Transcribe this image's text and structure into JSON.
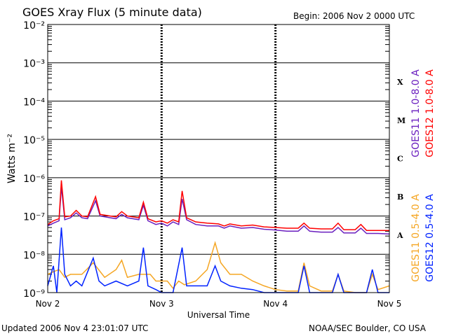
{
  "header": {
    "title": "GOES Xray Flux (5 minute data)",
    "begin": "Begin:  2006 Nov 2 0000 UTC"
  },
  "footer": {
    "updated": "Updated 2006 Nov  4 23:01:07 UTC",
    "credit": "NOAA/SEC Boulder, CO USA"
  },
  "colors": {
    "goes11_long": "#6a1fbf",
    "goes12_long": "#ff0000",
    "goes11_short": "#f5a623",
    "goes12_short": "#0022ff"
  },
  "chart_data": {
    "type": "line",
    "title": "GOES Xray Flux (5 minute data)",
    "xlabel": "Universal Time",
    "ylabel": "Watts m⁻²",
    "yscale": "log",
    "ylim": [
      1e-09,
      0.01
    ],
    "xlim": [
      0,
      3
    ],
    "x_unit": "days since 2006 Nov 2 0000 UTC",
    "x_ticks": [
      {
        "x": 0,
        "label": "Nov 2"
      },
      {
        "x": 1,
        "label": "Nov 3"
      },
      {
        "x": 2,
        "label": "Nov 4"
      },
      {
        "x": 3,
        "label": "Nov 5"
      }
    ],
    "y_ticks": [
      {
        "y": 0.01,
        "label": "10⁻²"
      },
      {
        "y": 0.001,
        "label": "10⁻³"
      },
      {
        "y": 0.0001,
        "label": "10⁻⁴"
      },
      {
        "y": 1e-05,
        "label": "10⁻⁵"
      },
      {
        "y": 1e-06,
        "label": "10⁻⁶"
      },
      {
        "y": 1e-07,
        "label": "10⁻⁷"
      },
      {
        "y": 1e-08,
        "label": "10⁻⁸"
      },
      {
        "y": 1e-09,
        "label": "10⁻⁹"
      }
    ],
    "flare_classes": [
      {
        "label": "X",
        "y": 0.000316
      },
      {
        "label": "M",
        "y": 3.16e-05
      },
      {
        "label": "C",
        "y": 3.16e-06
      },
      {
        "label": "B",
        "y": 3.16e-07
      },
      {
        "label": "A",
        "y": 3.16e-08
      }
    ],
    "grid": true,
    "legend_right": [
      {
        "text": "GOES11 1.0-8.0 A",
        "color": "#6a1fbf"
      },
      {
        "text": "GOES12 1.0-8.0 A",
        "color": "#ff0000"
      }
    ],
    "legend_left": [
      {
        "text": "GOES11 0.5-4.0 A",
        "color": "#f5a623"
      },
      {
        "text": "GOES12 0.5-4.0 A",
        "color": "#0022ff"
      }
    ],
    "series": [
      {
        "name": "GOES11 1.0-8.0 A",
        "color": "#6a1fbf",
        "points": [
          [
            0,
            5.5e-08
          ],
          [
            0.05,
            6.5e-08
          ],
          [
            0.1,
            7.5e-08
          ],
          [
            0.12,
            5.8e-07
          ],
          [
            0.15,
            8e-08
          ],
          [
            0.2,
            9e-08
          ],
          [
            0.25,
            1.2e-07
          ],
          [
            0.3,
            9e-08
          ],
          [
            0.35,
            8.5e-08
          ],
          [
            0.42,
            2.5e-07
          ],
          [
            0.46,
            1e-07
          ],
          [
            0.55,
            9e-08
          ],
          [
            0.6,
            8.5e-08
          ],
          [
            0.65,
            1.1e-07
          ],
          [
            0.7,
            9e-08
          ],
          [
            0.8,
            8e-08
          ],
          [
            0.84,
            1.9e-07
          ],
          [
            0.88,
            7.5e-08
          ],
          [
            0.95,
            6e-08
          ],
          [
            1.0,
            6.5e-08
          ],
          [
            1.05,
            5.5e-08
          ],
          [
            1.1,
            7e-08
          ],
          [
            1.15,
            6e-08
          ],
          [
            1.18,
            2.8e-07
          ],
          [
            1.22,
            8e-08
          ],
          [
            1.3,
            6e-08
          ],
          [
            1.4,
            5.5e-08
          ],
          [
            1.5,
            5.5e-08
          ],
          [
            1.55,
            4.8e-08
          ],
          [
            1.6,
            5.5e-08
          ],
          [
            1.7,
            4.8e-08
          ],
          [
            1.8,
            5e-08
          ],
          [
            1.9,
            4.5e-08
          ],
          [
            2.0,
            4.3e-08
          ],
          [
            2.1,
            4e-08
          ],
          [
            2.2,
            4e-08
          ],
          [
            2.25,
            5.5e-08
          ],
          [
            2.3,
            4e-08
          ],
          [
            2.4,
            3.8e-08
          ],
          [
            2.5,
            3.8e-08
          ],
          [
            2.55,
            5e-08
          ],
          [
            2.6,
            3.6e-08
          ],
          [
            2.7,
            3.6e-08
          ],
          [
            2.75,
            4.8e-08
          ],
          [
            2.8,
            3.5e-08
          ],
          [
            2.9,
            3.5e-08
          ],
          [
            3.0,
            3.4e-08
          ]
        ]
      },
      {
        "name": "GOES12 1.0-8.0 A",
        "color": "#ff0000",
        "points": [
          [
            0,
            6e-08
          ],
          [
            0.05,
            7.5e-08
          ],
          [
            0.1,
            8.5e-08
          ],
          [
            0.12,
            8.5e-07
          ],
          [
            0.15,
            9.5e-08
          ],
          [
            0.2,
            1e-07
          ],
          [
            0.25,
            1.4e-07
          ],
          [
            0.3,
            1e-07
          ],
          [
            0.35,
            9.5e-08
          ],
          [
            0.42,
            3.2e-07
          ],
          [
            0.46,
            1.1e-07
          ],
          [
            0.55,
            1e-07
          ],
          [
            0.6,
            9.5e-08
          ],
          [
            0.65,
            1.3e-07
          ],
          [
            0.7,
            1e-07
          ],
          [
            0.8,
            9e-08
          ],
          [
            0.84,
            2.3e-07
          ],
          [
            0.88,
            8.5e-08
          ],
          [
            0.95,
            7e-08
          ],
          [
            1.0,
            7.5e-08
          ],
          [
            1.05,
            6.5e-08
          ],
          [
            1.1,
            8e-08
          ],
          [
            1.15,
            7e-08
          ],
          [
            1.18,
            4.5e-07
          ],
          [
            1.22,
            9e-08
          ],
          [
            1.3,
            7e-08
          ],
          [
            1.4,
            6.5e-08
          ],
          [
            1.5,
            6.2e-08
          ],
          [
            1.55,
            5.5e-08
          ],
          [
            1.6,
            6.2e-08
          ],
          [
            1.7,
            5.5e-08
          ],
          [
            1.8,
            5.8e-08
          ],
          [
            1.9,
            5.2e-08
          ],
          [
            2.0,
            5e-08
          ],
          [
            2.1,
            4.8e-08
          ],
          [
            2.2,
            4.8e-08
          ],
          [
            2.25,
            6.5e-08
          ],
          [
            2.3,
            4.8e-08
          ],
          [
            2.4,
            4.6e-08
          ],
          [
            2.5,
            4.6e-08
          ],
          [
            2.55,
            6.5e-08
          ],
          [
            2.6,
            4.4e-08
          ],
          [
            2.7,
            4.4e-08
          ],
          [
            2.75,
            6e-08
          ],
          [
            2.8,
            4.2e-08
          ],
          [
            2.9,
            4.2e-08
          ],
          [
            3.0,
            4.2e-08
          ]
        ]
      },
      {
        "name": "GOES11 0.5-4.0 A",
        "color": "#f5a623",
        "points": [
          [
            0,
            3e-09
          ],
          [
            0.05,
            3.5e-09
          ],
          [
            0.1,
            4e-09
          ],
          [
            0.15,
            2.5e-09
          ],
          [
            0.2,
            3e-09
          ],
          [
            0.3,
            3e-09
          ],
          [
            0.4,
            6e-09
          ],
          [
            0.5,
            2.5e-09
          ],
          [
            0.6,
            4e-09
          ],
          [
            0.65,
            7e-09
          ],
          [
            0.7,
            2.5e-09
          ],
          [
            0.8,
            3e-09
          ],
          [
            0.9,
            3e-09
          ],
          [
            0.95,
            2e-09
          ],
          [
            1.05,
            2e-09
          ],
          [
            1.1,
            1.3e-09
          ],
          [
            1.15,
            2e-09
          ],
          [
            1.2,
            1.6e-09
          ],
          [
            1.3,
            2e-09
          ],
          [
            1.4,
            4e-09
          ],
          [
            1.47,
            2e-08
          ],
          [
            1.52,
            6e-09
          ],
          [
            1.6,
            3e-09
          ],
          [
            1.7,
            3e-09
          ],
          [
            1.8,
            2e-09
          ],
          [
            1.9,
            1.5e-09
          ],
          [
            2.0,
            1.2e-09
          ],
          [
            2.1,
            1.1e-09
          ],
          [
            2.2,
            1.1e-09
          ],
          [
            2.25,
            6e-09
          ],
          [
            2.3,
            1.5e-09
          ],
          [
            2.4,
            1.1e-09
          ],
          [
            2.5,
            1.1e-09
          ],
          [
            2.55,
            3e-09
          ],
          [
            2.6,
            1.1e-09
          ],
          [
            2.7,
            1e-09
          ],
          [
            2.8,
            1e-09
          ],
          [
            2.85,
            3e-09
          ],
          [
            2.9,
            1.2e-09
          ],
          [
            3.0,
            1.5e-09
          ]
        ]
      },
      {
        "name": "GOES12 0.5-4.0 A",
        "color": "#0022ff",
        "points": [
          [
            0,
            1.5e-09
          ],
          [
            0.05,
            5e-09
          ],
          [
            0.08,
            1e-09
          ],
          [
            0.12,
            5e-08
          ],
          [
            0.15,
            3e-09
          ],
          [
            0.2,
            1.5e-09
          ],
          [
            0.25,
            2e-09
          ],
          [
            0.3,
            1.5e-09
          ],
          [
            0.4,
            8e-09
          ],
          [
            0.45,
            2e-09
          ],
          [
            0.5,
            1.5e-09
          ],
          [
            0.6,
            2e-09
          ],
          [
            0.7,
            1.5e-09
          ],
          [
            0.8,
            2e-09
          ],
          [
            0.84,
            1.5e-08
          ],
          [
            0.88,
            1.5e-09
          ],
          [
            0.95,
            1.2e-09
          ],
          [
            1.0,
            1e-09
          ],
          [
            1.05,
            1e-09
          ],
          [
            1.1,
            1e-09
          ],
          [
            1.18,
            1.5e-08
          ],
          [
            1.22,
            1.5e-09
          ],
          [
            1.3,
            1.5e-09
          ],
          [
            1.4,
            1.5e-09
          ],
          [
            1.47,
            5e-09
          ],
          [
            1.52,
            2e-09
          ],
          [
            1.6,
            1.5e-09
          ],
          [
            1.7,
            1.3e-09
          ],
          [
            1.8,
            1.2e-09
          ],
          [
            1.9,
            1e-09
          ],
          [
            2.0,
            1e-09
          ],
          [
            2.2,
            1e-09
          ],
          [
            2.25,
            5e-09
          ],
          [
            2.3,
            1e-09
          ],
          [
            2.5,
            1e-09
          ],
          [
            2.55,
            3e-09
          ],
          [
            2.6,
            1e-09
          ],
          [
            2.8,
            1e-09
          ],
          [
            2.85,
            4e-09
          ],
          [
            2.9,
            1e-09
          ],
          [
            3.0,
            1e-09
          ]
        ]
      }
    ]
  }
}
